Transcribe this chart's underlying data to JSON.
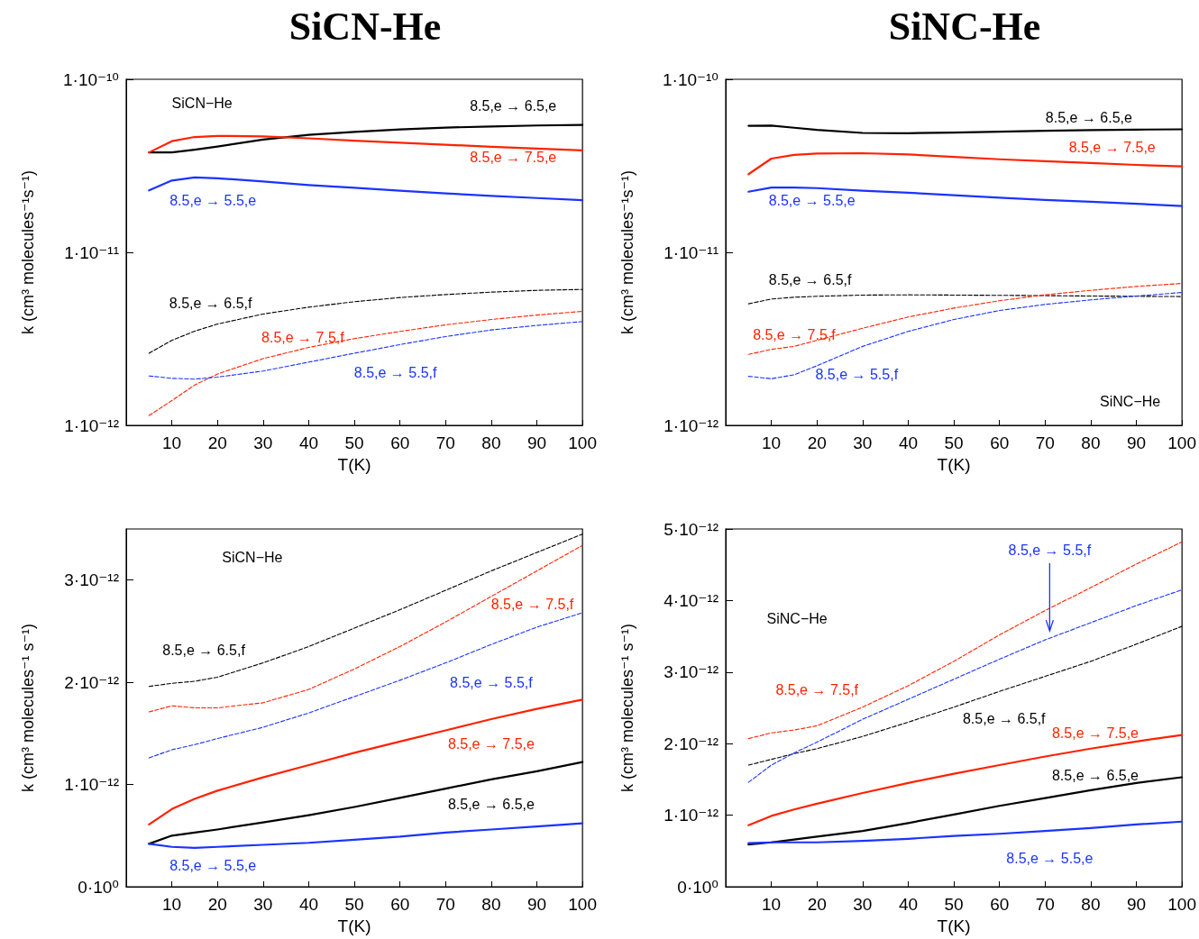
{
  "chart_data": [
    {
      "type": "line",
      "title": "SiCN-He",
      "xlabel": "T(K)",
      "ylabel": "k (cm³ molecules⁻¹s⁻¹)",
      "log": true,
      "grid": false,
      "marker": "none",
      "xlim": [
        0,
        100
      ],
      "xticks": [
        10,
        20,
        30,
        40,
        50,
        60,
        70,
        80,
        90,
        100
      ],
      "ylim": [
        1e-12,
        1e-10
      ],
      "yticks": [
        {
          "value": 1e-12,
          "label": "1·10⁻¹²"
        },
        {
          "value": 1e-11,
          "label": "1·10⁻¹¹"
        },
        {
          "value": 1e-10,
          "label": "1·10⁻¹⁰"
        }
      ],
      "x": [
        5,
        10,
        15,
        20,
        30,
        40,
        50,
        60,
        70,
        80,
        90,
        100
      ],
      "series": [
        {
          "name": "8.5,e → 6.5,e",
          "color": "#000000",
          "line_style": "solid",
          "values": [
            3.78e-11,
            3.78e-11,
            3.92e-11,
            4.09e-11,
            4.48e-11,
            4.78e-11,
            4.97e-11,
            5.13e-11,
            5.26e-11,
            5.34e-11,
            5.41e-11,
            5.45e-11
          ]
        },
        {
          "name": "8.5,e → 7.5,e",
          "color": "#ff2200",
          "line_style": "solid",
          "values": [
            3.78e-11,
            4.39e-11,
            4.64e-11,
            4.71e-11,
            4.68e-11,
            4.56e-11,
            4.42e-11,
            4.3e-11,
            4.19e-11,
            4.07e-11,
            3.98e-11,
            3.88e-11
          ]
        },
        {
          "name": "8.5,e → 5.5,e",
          "color": "#1a33ff",
          "line_style": "solid",
          "values": [
            2.28e-11,
            2.6e-11,
            2.71e-11,
            2.68e-11,
            2.57e-11,
            2.45e-11,
            2.36e-11,
            2.27e-11,
            2.19e-11,
            2.12e-11,
            2.06e-11,
            2e-11
          ]
        },
        {
          "name": "8.5,e → 6.5,f",
          "color": "#000000",
          "line_style": "dashed",
          "values": [
            2.61e-12,
            3.1e-12,
            3.5e-12,
            3.85e-12,
            4.4e-12,
            4.82e-12,
            5.18e-12,
            5.48e-12,
            5.7e-12,
            5.89e-12,
            6.03e-12,
            6.1e-12
          ]
        },
        {
          "name": "8.5,e → 7.5,f",
          "color": "#ff2200",
          "line_style": "dashed",
          "values": [
            1.14e-12,
            1.39e-12,
            1.71e-12,
            1.98e-12,
            2.43e-12,
            2.82e-12,
            3.17e-12,
            3.49e-12,
            3.81e-12,
            4.09e-12,
            4.34e-12,
            4.56e-12
          ]
        },
        {
          "name": "8.5,e → 5.5,f",
          "color": "#1a33ff",
          "line_style": "dashed",
          "values": [
            1.93e-12,
            1.87e-12,
            1.85e-12,
            1.9e-12,
            2.06e-12,
            2.32e-12,
            2.61e-12,
            2.93e-12,
            3.26e-12,
            3.56e-12,
            3.78e-12,
            3.98e-12
          ]
        }
      ],
      "annotations": [
        "SiCN−He"
      ]
    },
    {
      "type": "line",
      "title": "SiNC-He",
      "xlabel": "T(K)",
      "ylabel": "k (cm³ molecules⁻¹s⁻¹)",
      "log": true,
      "grid": false,
      "marker": "none",
      "xlim": [
        0,
        100
      ],
      "xticks": [
        10,
        20,
        30,
        40,
        50,
        60,
        70,
        80,
        90,
        100
      ],
      "ylim": [
        1e-12,
        1e-10
      ],
      "yticks": [
        {
          "value": 1e-12,
          "label": "1·10⁻¹²"
        },
        {
          "value": 1e-11,
          "label": "1·10⁻¹¹"
        },
        {
          "value": 1e-10,
          "label": "1·10⁻¹⁰"
        }
      ],
      "x": [
        5,
        10,
        15,
        20,
        30,
        40,
        50,
        60,
        70,
        80,
        90,
        100
      ],
      "series": [
        {
          "name": "8.5,e → 6.5,e",
          "color": "#000000",
          "line_style": "solid",
          "values": [
            5.39e-11,
            5.4e-11,
            5.25e-11,
            5.1e-11,
            4.9e-11,
            4.88e-11,
            4.92e-11,
            4.98e-11,
            5.04e-11,
            5.08e-11,
            5.12e-11,
            5.14e-11
          ]
        },
        {
          "name": "8.5,e → 7.5,e",
          "color": "#ff2200",
          "line_style": "solid",
          "values": [
            2.83e-11,
            3.48e-11,
            3.66e-11,
            3.72e-11,
            3.74e-11,
            3.68e-11,
            3.56e-11,
            3.45e-11,
            3.36e-11,
            3.28e-11,
            3.2e-11,
            3.14e-11
          ]
        },
        {
          "name": "8.5,e → 5.5,e",
          "color": "#1a33ff",
          "line_style": "solid",
          "values": [
            2.24e-11,
            2.37e-11,
            2.37e-11,
            2.35e-11,
            2.27e-11,
            2.21e-11,
            2.14e-11,
            2.07e-11,
            2.01e-11,
            1.96e-11,
            1.91e-11,
            1.85e-11
          ]
        },
        {
          "name": "8.5,e → 6.5,f",
          "color": "#000000",
          "line_style": "dashed",
          "values": [
            5.04e-12,
            5.37e-12,
            5.5e-12,
            5.57e-12,
            5.66e-12,
            5.68e-12,
            5.66e-12,
            5.64e-12,
            5.62e-12,
            5.59e-12,
            5.57e-12,
            5.55e-12
          ]
        },
        {
          "name": "8.5,e → 7.5,f",
          "color": "#ff2200",
          "line_style": "dashed",
          "values": [
            2.57e-12,
            2.75e-12,
            2.86e-12,
            3.1e-12,
            3.64e-12,
            4.23e-12,
            4.76e-12,
            5.25e-12,
            5.68e-12,
            6.03e-12,
            6.35e-12,
            6.61e-12
          ]
        },
        {
          "name": "8.5,e → 5.5,f",
          "color": "#1a33ff",
          "line_style": "dashed",
          "values": [
            1.92e-12,
            1.86e-12,
            1.96e-12,
            2.21e-12,
            2.86e-12,
            3.49e-12,
            4.09e-12,
            4.61e-12,
            5e-12,
            5.31e-12,
            5.59e-12,
            5.86e-12
          ]
        }
      ],
      "annotations": [
        "SiNC−He"
      ]
    },
    {
      "type": "line",
      "xlabel": "T(K)",
      "ylabel": "k (cm³ molecules⁻¹ s⁻¹)",
      "grid": false,
      "marker": "none",
      "xlim": [
        0,
        100
      ],
      "xticks": [
        10,
        20,
        30,
        40,
        50,
        60,
        70,
        80,
        90,
        100
      ],
      "ylim": [
        0,
        3.5e-12
      ],
      "yticks": [
        {
          "value": 0,
          "label": "0·10⁰"
        },
        {
          "value": 1e-12,
          "label": "1·10⁻¹²"
        },
        {
          "value": 2e-12,
          "label": "2·10⁻¹²"
        },
        {
          "value": 3e-12,
          "label": "3·10⁻¹²"
        }
      ],
      "x": [
        5,
        10,
        15,
        20,
        30,
        40,
        50,
        60,
        70,
        80,
        90,
        100
      ],
      "series": [
        {
          "name": "8.5,e → 6.5,e",
          "color": "#000000",
          "line_style": "solid",
          "values": [
            4.2e-13,
            5e-13,
            5.3e-13,
            5.6e-13,
            6.3e-13,
            7e-13,
            7.8e-13,
            8.7e-13,
            9.6e-13,
            1.05e-12,
            1.13e-12,
            1.22e-12
          ]
        },
        {
          "name": "8.5,e → 7.5,e",
          "color": "#ff2200",
          "line_style": "solid",
          "values": [
            6.1e-13,
            7.6e-13,
            8.6e-13,
            9.4e-13,
            1.07e-12,
            1.19e-12,
            1.31e-12,
            1.42e-12,
            1.53e-12,
            1.64e-12,
            1.74e-12,
            1.83e-12
          ]
        },
        {
          "name": "8.5,e → 5.5,e",
          "color": "#1a33ff",
          "line_style": "solid",
          "values": [
            4.2e-13,
            3.9e-13,
            3.8e-13,
            3.9e-13,
            4.1e-13,
            4.3e-13,
            4.6e-13,
            4.9e-13,
            5.3e-13,
            5.6e-13,
            5.9e-13,
            6.2e-13
          ]
        },
        {
          "name": "8.5,e → 6.5,f",
          "color": "#000000",
          "line_style": "dashed",
          "values": [
            1.96e-12,
            1.99e-12,
            2.01e-12,
            2.05e-12,
            2.19e-12,
            2.35e-12,
            2.53e-12,
            2.71e-12,
            2.9e-12,
            3.09e-12,
            3.27e-12,
            3.45e-12
          ]
        },
        {
          "name": "8.5,e → 7.5,f",
          "color": "#ff2200",
          "line_style": "dashed",
          "values": [
            1.71e-12,
            1.77e-12,
            1.75e-12,
            1.75e-12,
            1.8e-12,
            1.93e-12,
            2.13e-12,
            2.35e-12,
            2.59e-12,
            2.84e-12,
            3.09e-12,
            3.34e-12
          ]
        },
        {
          "name": "8.5,e → 5.5,f",
          "color": "#1a33ff",
          "line_style": "dashed",
          "values": [
            1.26e-12,
            1.34e-12,
            1.39e-12,
            1.45e-12,
            1.56e-12,
            1.7e-12,
            1.86e-12,
            2.02e-12,
            2.19e-12,
            2.37e-12,
            2.54e-12,
            2.68e-12
          ]
        }
      ],
      "annotations": [
        "SiCN−He"
      ]
    },
    {
      "type": "line",
      "xlabel": "T(K)",
      "ylabel": "k (cm³ molecules⁻¹ s⁻¹)",
      "grid": false,
      "marker": "none",
      "xlim": [
        0,
        100
      ],
      "xticks": [
        10,
        20,
        30,
        40,
        50,
        60,
        70,
        80,
        90,
        100
      ],
      "ylim": [
        0,
        5e-12
      ],
      "yticks": [
        {
          "value": 0,
          "label": "0·10⁰"
        },
        {
          "value": 1e-12,
          "label": "1·10⁻¹²"
        },
        {
          "value": 2e-12,
          "label": "2·10⁻¹²"
        },
        {
          "value": 3e-12,
          "label": "3·10⁻¹²"
        },
        {
          "value": 4e-12,
          "label": "4·10⁻¹²"
        },
        {
          "value": 5e-12,
          "label": "5·10⁻¹²"
        }
      ],
      "x": [
        5,
        10,
        15,
        20,
        30,
        40,
        50,
        60,
        70,
        80,
        90,
        100
      ],
      "series": [
        {
          "name": "8.5,e → 6.5,e",
          "color": "#000000",
          "line_style": "solid",
          "values": [
            5.9e-13,
            6.2e-13,
            6.6e-13,
            7e-13,
            7.8e-13,
            8.9e-13,
            1.01e-12,
            1.13e-12,
            1.24e-12,
            1.35e-12,
            1.45e-12,
            1.53e-12
          ]
        },
        {
          "name": "8.5,e → 7.5,e",
          "color": "#ff2200",
          "line_style": "solid",
          "values": [
            8.6e-13,
            9.9e-13,
            1.08e-12,
            1.16e-12,
            1.31e-12,
            1.45e-12,
            1.58e-12,
            1.7e-12,
            1.82e-12,
            1.93e-12,
            2.03e-12,
            2.12e-12
          ]
        },
        {
          "name": "8.5,e → 5.5,e",
          "color": "#1a33ff",
          "line_style": "solid",
          "values": [
            6.1e-13,
            6.2e-13,
            6.2e-13,
            6.2e-13,
            6.4e-13,
            6.7e-13,
            7.1e-13,
            7.4e-13,
            7.8e-13,
            8.2e-13,
            8.7e-13,
            9.1e-13
          ]
        },
        {
          "name": "8.5,e → 6.5,f",
          "color": "#000000",
          "line_style": "dashed",
          "values": [
            1.7e-12,
            1.78e-12,
            1.86e-12,
            1.93e-12,
            2.1e-12,
            2.3e-12,
            2.51e-12,
            2.73e-12,
            2.94e-12,
            3.15e-12,
            3.39e-12,
            3.64e-12
          ]
        },
        {
          "name": "8.5,e → 7.5,f",
          "color": "#ff2200",
          "line_style": "dashed",
          "values": [
            2.07e-12,
            2.15e-12,
            2.19e-12,
            2.25e-12,
            2.51e-12,
            2.81e-12,
            3.15e-12,
            3.52e-12,
            3.86e-12,
            4.18e-12,
            4.51e-12,
            4.82e-12
          ]
        },
        {
          "name": "8.5,e → 5.5,f",
          "color": "#1a33ff",
          "line_style": "dashed",
          "values": [
            1.46e-12,
            1.7e-12,
            1.87e-12,
            2.02e-12,
            2.34e-12,
            2.62e-12,
            2.9e-12,
            3.18e-12,
            3.45e-12,
            3.69e-12,
            3.93e-12,
            4.15e-12
          ]
        }
      ],
      "annotations": [
        "SiNC−He"
      ]
    }
  ]
}
